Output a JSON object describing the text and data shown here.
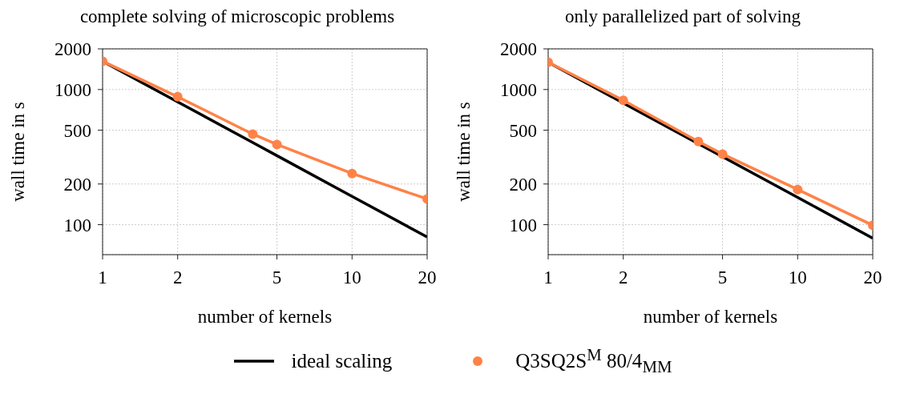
{
  "chart_data": [
    {
      "type": "line",
      "title": "complete solving of microscopic problems",
      "xlabel": "number of kernels",
      "ylabel": "wall time in s",
      "log": "xy",
      "xlim": [
        1,
        20
      ],
      "xticks": [
        1,
        2,
        5,
        10,
        20
      ],
      "ylim": [
        60,
        2000
      ],
      "yticks": [
        100,
        200,
        500,
        1000,
        2000
      ],
      "grid": true,
      "legend": "bottom",
      "series": [
        {
          "name": "ideal scaling",
          "color": "#000000",
          "marker": "none",
          "x": [
            1,
            2,
            4,
            5,
            10,
            20
          ],
          "values": [
            1620,
            810,
            405,
            324,
            162,
            81
          ]
        },
        {
          "name": "Q3SQ2S$^{M}$ 80/4$_{MM}$",
          "color": "#ff8247",
          "marker": "circle",
          "x": [
            1,
            2,
            4,
            5,
            10,
            20
          ],
          "values": [
            1620,
            884,
            468,
            392,
            239,
            155
          ]
        }
      ]
    },
    {
      "type": "line",
      "title": "only parallelized part of solving",
      "xlabel": "number of kernels",
      "ylabel": "wall time in s",
      "log": "xy",
      "xlim": [
        1,
        20
      ],
      "xticks": [
        1,
        2,
        5,
        10,
        20
      ],
      "ylim": [
        60,
        2000
      ],
      "yticks": [
        100,
        200,
        500,
        1000,
        2000
      ],
      "grid": true,
      "series": [
        {
          "color": "#000000",
          "marker": "none",
          "x": [
            1,
            2,
            4,
            5,
            10,
            20
          ],
          "values": [
            1590,
            795,
            397.5,
            318,
            159,
            79.5
          ]
        },
        {
          "color": "#ff8247",
          "marker": "circle",
          "x": [
            1,
            2,
            4,
            5,
            10,
            20
          ],
          "values": [
            1590,
            833,
            412,
            333,
            182,
            99
          ]
        }
      ]
    }
  ]
}
